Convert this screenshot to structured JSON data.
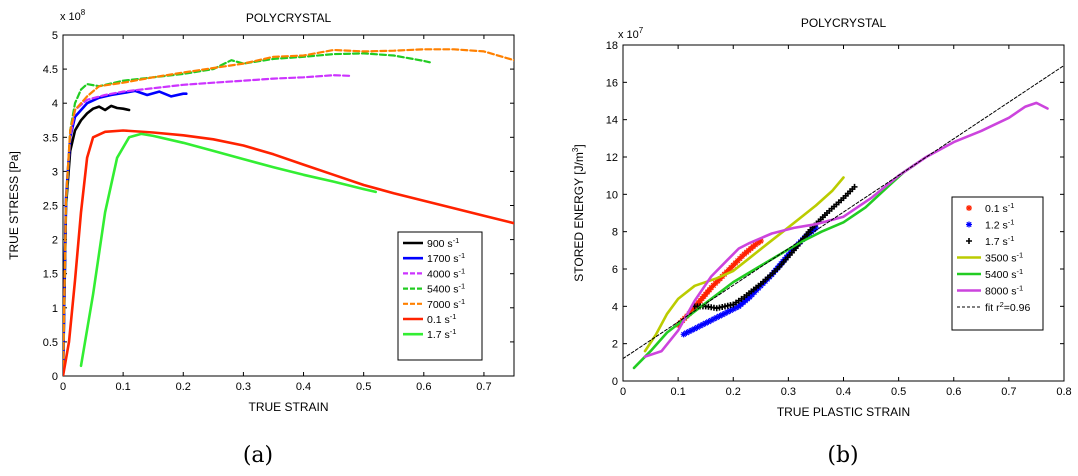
{
  "chart_data": [
    {
      "panel": "a",
      "type": "line",
      "caption": "(a)",
      "title": "POLYCRYSTAL",
      "xlabel": "TRUE STRAIN",
      "ylabel": "TRUE STRESS [Pa]",
      "y_multiplier": "x 10",
      "y_multiplier_exp": "8",
      "xlim": [
        0,
        0.75
      ],
      "ylim": [
        0,
        5
      ],
      "xticks": [
        "0",
        "0.1",
        "0.2",
        "0.3",
        "0.4",
        "0.5",
        "0.6",
        "0.7"
      ],
      "xtick_values": [
        0,
        0.1,
        0.2,
        0.3,
        0.4,
        0.5,
        0.6,
        0.7
      ],
      "yticks": [
        "0",
        "0.5",
        "1",
        "1.5",
        "2",
        "2.5",
        "3",
        "3.5",
        "4",
        "4.5",
        "5"
      ],
      "ytick_values": [
        0,
        0.5,
        1,
        1.5,
        2,
        2.5,
        3,
        3.5,
        4,
        4.5,
        5
      ],
      "legend_position": "lower-right",
      "series": [
        {
          "name": "900 s",
          "sup": "-1",
          "color": "#000000",
          "style": "solid",
          "points": [
            [
              0,
              0
            ],
            [
              0.005,
              2.5
            ],
            [
              0.012,
              3.3
            ],
            [
              0.02,
              3.6
            ],
            [
              0.03,
              3.75
            ],
            [
              0.04,
              3.85
            ],
            [
              0.05,
              3.92
            ],
            [
              0.06,
              3.95
            ],
            [
              0.07,
              3.9
            ],
            [
              0.08,
              3.96
            ],
            [
              0.09,
              3.93
            ],
            [
              0.1,
              3.92
            ],
            [
              0.11,
              3.9
            ]
          ]
        },
        {
          "name": "1700 s",
          "sup": "-1",
          "color": "#0000ff",
          "style": "solid",
          "points": [
            [
              0,
              0
            ],
            [
              0.005,
              2.6
            ],
            [
              0.012,
              3.5
            ],
            [
              0.02,
              3.8
            ],
            [
              0.04,
              4.0
            ],
            [
              0.06,
              4.08
            ],
            [
              0.08,
              4.12
            ],
            [
              0.1,
              4.15
            ],
            [
              0.12,
              4.18
            ],
            [
              0.14,
              4.12
            ],
            [
              0.16,
              4.17
            ],
            [
              0.18,
              4.1
            ],
            [
              0.2,
              4.14
            ],
            [
              0.205,
              4.14
            ]
          ]
        },
        {
          "name": "4000 s",
          "sup": "-1",
          "color": "#cc33ff",
          "style": "dashed",
          "points": [
            [
              0,
              0
            ],
            [
              0.005,
              2.5
            ],
            [
              0.012,
              3.5
            ],
            [
              0.02,
              3.9
            ],
            [
              0.04,
              4.05
            ],
            [
              0.07,
              4.12
            ],
            [
              0.1,
              4.17
            ],
            [
              0.15,
              4.22
            ],
            [
              0.2,
              4.27
            ],
            [
              0.25,
              4.3
            ],
            [
              0.3,
              4.33
            ],
            [
              0.35,
              4.36
            ],
            [
              0.4,
              4.38
            ],
            [
              0.45,
              4.41
            ],
            [
              0.48,
              4.4
            ]
          ]
        },
        {
          "name": "5400 s",
          "sup": "-1",
          "color": "#22cc22",
          "style": "dashed",
          "points": [
            [
              0,
              0
            ],
            [
              0.005,
              2.5
            ],
            [
              0.012,
              3.6
            ],
            [
              0.02,
              4.0
            ],
            [
              0.03,
              4.2
            ],
            [
              0.04,
              4.28
            ],
            [
              0.06,
              4.25
            ],
            [
              0.1,
              4.33
            ],
            [
              0.15,
              4.38
            ],
            [
              0.2,
              4.43
            ],
            [
              0.25,
              4.5
            ],
            [
              0.28,
              4.63
            ],
            [
              0.3,
              4.58
            ],
            [
              0.35,
              4.65
            ],
            [
              0.4,
              4.68
            ],
            [
              0.45,
              4.72
            ],
            [
              0.5,
              4.73
            ],
            [
              0.55,
              4.7
            ],
            [
              0.6,
              4.62
            ],
            [
              0.61,
              4.6
            ]
          ]
        },
        {
          "name": "7000 s",
          "sup": "-1",
          "color": "#ff8000",
          "style": "dashed",
          "points": [
            [
              0,
              0
            ],
            [
              0.005,
              2.6
            ],
            [
              0.012,
              3.6
            ],
            [
              0.02,
              3.9
            ],
            [
              0.04,
              4.1
            ],
            [
              0.06,
              4.25
            ],
            [
              0.1,
              4.3
            ],
            [
              0.15,
              4.38
            ],
            [
              0.2,
              4.45
            ],
            [
              0.3,
              4.58
            ],
            [
              0.35,
              4.68
            ],
            [
              0.4,
              4.7
            ],
            [
              0.45,
              4.78
            ],
            [
              0.5,
              4.76
            ],
            [
              0.55,
              4.77
            ],
            [
              0.6,
              4.79
            ],
            [
              0.65,
              4.79
            ],
            [
              0.7,
              4.76
            ],
            [
              0.75,
              4.63
            ]
          ]
        },
        {
          "name": "0.1 s",
          "sup": "-1",
          "color": "#ff2200",
          "style": "solid",
          "points": [
            [
              0,
              0
            ],
            [
              0.01,
              0.5
            ],
            [
              0.02,
              1.4
            ],
            [
              0.03,
              2.4
            ],
            [
              0.04,
              3.2
            ],
            [
              0.05,
              3.5
            ],
            [
              0.07,
              3.58
            ],
            [
              0.1,
              3.6
            ],
            [
              0.15,
              3.57
            ],
            [
              0.2,
              3.53
            ],
            [
              0.25,
              3.47
            ],
            [
              0.3,
              3.38
            ],
            [
              0.35,
              3.25
            ],
            [
              0.4,
              3.1
            ],
            [
              0.45,
              2.95
            ],
            [
              0.5,
              2.8
            ],
            [
              0.55,
              2.68
            ],
            [
              0.6,
              2.57
            ],
            [
              0.65,
              2.46
            ],
            [
              0.7,
              2.35
            ],
            [
              0.75,
              2.24
            ]
          ]
        },
        {
          "name": "1.7 s",
          "sup": "-1",
          "color": "#33ee33",
          "style": "solid",
          "points": [
            [
              0.03,
              0.15
            ],
            [
              0.05,
              1.2
            ],
            [
              0.07,
              2.4
            ],
            [
              0.09,
              3.2
            ],
            [
              0.11,
              3.5
            ],
            [
              0.13,
              3.55
            ],
            [
              0.15,
              3.52
            ],
            [
              0.2,
              3.42
            ],
            [
              0.25,
              3.3
            ],
            [
              0.3,
              3.18
            ],
            [
              0.35,
              3.06
            ],
            [
              0.4,
              2.95
            ],
            [
              0.45,
              2.85
            ],
            [
              0.5,
              2.74
            ],
            [
              0.52,
              2.7
            ]
          ]
        }
      ]
    },
    {
      "panel": "b",
      "type": "line",
      "caption": "(b)",
      "title": "POLYCRYSTAL",
      "xlabel": "TRUE PLASTIC STRAIN",
      "ylabel": "STORED ENERGY [J/m",
      "ylabel_sup": "3",
      "ylabel_tail": "]",
      "y_multiplier": "x 10",
      "y_multiplier_exp": "7",
      "xlim": [
        0,
        0.8
      ],
      "ylim": [
        0,
        18
      ],
      "xticks": [
        "0",
        "0.1",
        "0.2",
        "0.3",
        "0.4",
        "0.5",
        "0.6",
        "0.7",
        "0.8"
      ],
      "xtick_values": [
        0,
        0.1,
        0.2,
        0.3,
        0.4,
        0.5,
        0.6,
        0.7,
        0.8
      ],
      "yticks": [
        "0",
        "2",
        "4",
        "6",
        "8",
        "10",
        "12",
        "14",
        "16",
        "18"
      ],
      "ytick_values": [
        0,
        2,
        4,
        6,
        8,
        10,
        12,
        14,
        16,
        18
      ],
      "legend_position": "right",
      "series": [
        {
          "name": "0.1 s",
          "sup": "-1",
          "color": "#ff2200",
          "marker": "*",
          "style": "markers",
          "points": [
            [
              0.1,
              3.0
            ],
            [
              0.12,
              3.6
            ],
            [
              0.14,
              4.3
            ],
            [
              0.16,
              5.0
            ],
            [
              0.18,
              5.6
            ],
            [
              0.2,
              6.2
            ],
            [
              0.22,
              6.8
            ],
            [
              0.24,
              7.3
            ],
            [
              0.25,
              7.5
            ]
          ]
        },
        {
          "name": "1.2 s",
          "sup": "-1",
          "color": "#0000ff",
          "marker": "*",
          "style": "markers",
          "points": [
            [
              0.11,
              2.5
            ],
            [
              0.13,
              2.8
            ],
            [
              0.15,
              3.1
            ],
            [
              0.17,
              3.4
            ],
            [
              0.19,
              3.7
            ],
            [
              0.21,
              4.0
            ],
            [
              0.23,
              4.5
            ],
            [
              0.25,
              5.1
            ],
            [
              0.27,
              5.7
            ],
            [
              0.29,
              6.4
            ],
            [
              0.31,
              7.1
            ],
            [
              0.33,
              7.7
            ],
            [
              0.35,
              8.2
            ]
          ]
        },
        {
          "name": "1.7 s",
          "sup": "-1",
          "color": "#000000",
          "marker": "+",
          "style": "markers",
          "points": [
            [
              0.13,
              4.0
            ],
            [
              0.15,
              4.0
            ],
            [
              0.17,
              3.9
            ],
            [
              0.2,
              4.1
            ],
            [
              0.22,
              4.5
            ],
            [
              0.25,
              5.2
            ],
            [
              0.28,
              6.0
            ],
            [
              0.31,
              7.0
            ],
            [
              0.34,
              8.1
            ],
            [
              0.37,
              9.0
            ],
            [
              0.4,
              9.8
            ],
            [
              0.42,
              10.4
            ]
          ]
        },
        {
          "name": "3500 s",
          "sup": "-1",
          "color": "#bbcc00",
          "style": "solid",
          "points": [
            [
              0.04,
              1.6
            ],
            [
              0.06,
              2.5
            ],
            [
              0.08,
              3.6
            ],
            [
              0.1,
              4.4
            ],
            [
              0.13,
              5.1
            ],
            [
              0.17,
              5.5
            ],
            [
              0.2,
              5.9
            ],
            [
              0.23,
              6.6
            ],
            [
              0.26,
              7.3
            ],
            [
              0.29,
              8.0
            ],
            [
              0.32,
              8.7
            ],
            [
              0.35,
              9.4
            ],
            [
              0.38,
              10.2
            ],
            [
              0.4,
              10.9
            ]
          ]
        },
        {
          "name": "5400 s",
          "sup": "-1",
          "color": "#22cc22",
          "style": "solid",
          "points": [
            [
              0.02,
              0.7
            ],
            [
              0.05,
              1.6
            ],
            [
              0.08,
              2.6
            ],
            [
              0.12,
              3.5
            ],
            [
              0.16,
              4.4
            ],
            [
              0.2,
              5.3
            ],
            [
              0.24,
              6.0
            ],
            [
              0.28,
              6.7
            ],
            [
              0.32,
              7.4
            ],
            [
              0.36,
              8.0
            ],
            [
              0.4,
              8.5
            ],
            [
              0.44,
              9.3
            ],
            [
              0.48,
              10.4
            ],
            [
              0.51,
              11.2
            ],
            [
              0.53,
              11.6
            ]
          ]
        },
        {
          "name": "8000 s",
          "sup": "-1",
          "color": "#cc44dd",
          "style": "solid",
          "points": [
            [
              0.04,
              1.3
            ],
            [
              0.07,
              1.6
            ],
            [
              0.1,
              2.7
            ],
            [
              0.13,
              4.3
            ],
            [
              0.16,
              5.6
            ],
            [
              0.19,
              6.5
            ],
            [
              0.21,
              7.1
            ],
            [
              0.23,
              7.4
            ],
            [
              0.27,
              7.9
            ],
            [
              0.31,
              8.2
            ],
            [
              0.35,
              8.4
            ],
            [
              0.4,
              8.8
            ],
            [
              0.45,
              9.8
            ],
            [
              0.5,
              11.0
            ],
            [
              0.55,
              12.0
            ],
            [
              0.6,
              12.8
            ],
            [
              0.65,
              13.4
            ],
            [
              0.7,
              14.1
            ],
            [
              0.73,
              14.7
            ],
            [
              0.75,
              14.9
            ],
            [
              0.77,
              14.6
            ]
          ]
        },
        {
          "name": "fit r",
          "sup": "2",
          "tail": "=0.96",
          "color": "#000000",
          "style": "fit",
          "points": [
            [
              0,
              1.2
            ],
            [
              0.8,
              16.9
            ]
          ]
        }
      ]
    }
  ]
}
